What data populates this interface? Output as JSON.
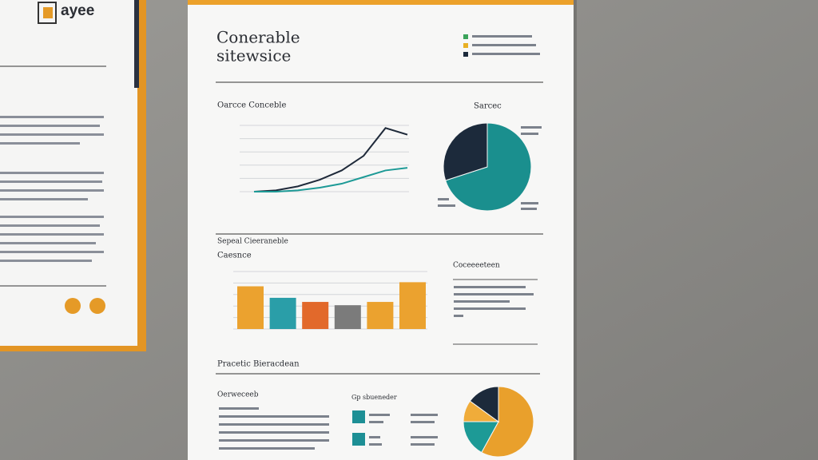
{
  "logo": "ayee",
  "report": {
    "title": [
      "Conerable",
      "sitewsice"
    ],
    "line_chart": {
      "type": "line",
      "title": "Oarcce Conceble",
      "ylim": [
        0,
        50
      ],
      "series": [
        {
          "color": "#1f2a3a",
          "values": [
            0,
            1,
            4,
            9,
            16,
            27,
            48,
            43
          ]
        },
        {
          "color": "#1d9a96",
          "values": [
            0,
            0,
            1,
            3,
            6,
            11,
            16,
            18
          ]
        }
      ]
    },
    "pie_chart": {
      "type": "pie",
      "title": "Sarcec",
      "series": [
        {
          "color": "#1a8f8e",
          "values": [
            70
          ]
        },
        {
          "color": "#1c2a3b",
          "values": [
            30
          ]
        }
      ]
    },
    "section_title": "Sepeal Cieeraneble",
    "bar_chart": {
      "type": "bar",
      "title": "Caesnce",
      "ylim": [
        0,
        70
      ],
      "values": [
        52,
        38,
        33,
        29,
        33,
        57
      ],
      "colors": [
        "#eba22f",
        "#2a9ea8",
        "#e2692b",
        "#7b7b7b",
        "#eba22f",
        "#eba22f"
      ]
    },
    "side_title": "Coceeeeteen",
    "practice_title": "Pracetic Bieracdean",
    "overview_title": "Oerweceeb",
    "group_title": "Gp sbueneder",
    "small_pie": {
      "type": "pie",
      "series": [
        {
          "color": "#e9a02c",
          "values": [
            58
          ]
        },
        {
          "color": "#1d9a96",
          "values": [
            17
          ]
        },
        {
          "color": "#f0ac3a",
          "values": [
            10
          ]
        },
        {
          "color": "#1c2a3b",
          "values": [
            15
          ]
        }
      ]
    }
  }
}
